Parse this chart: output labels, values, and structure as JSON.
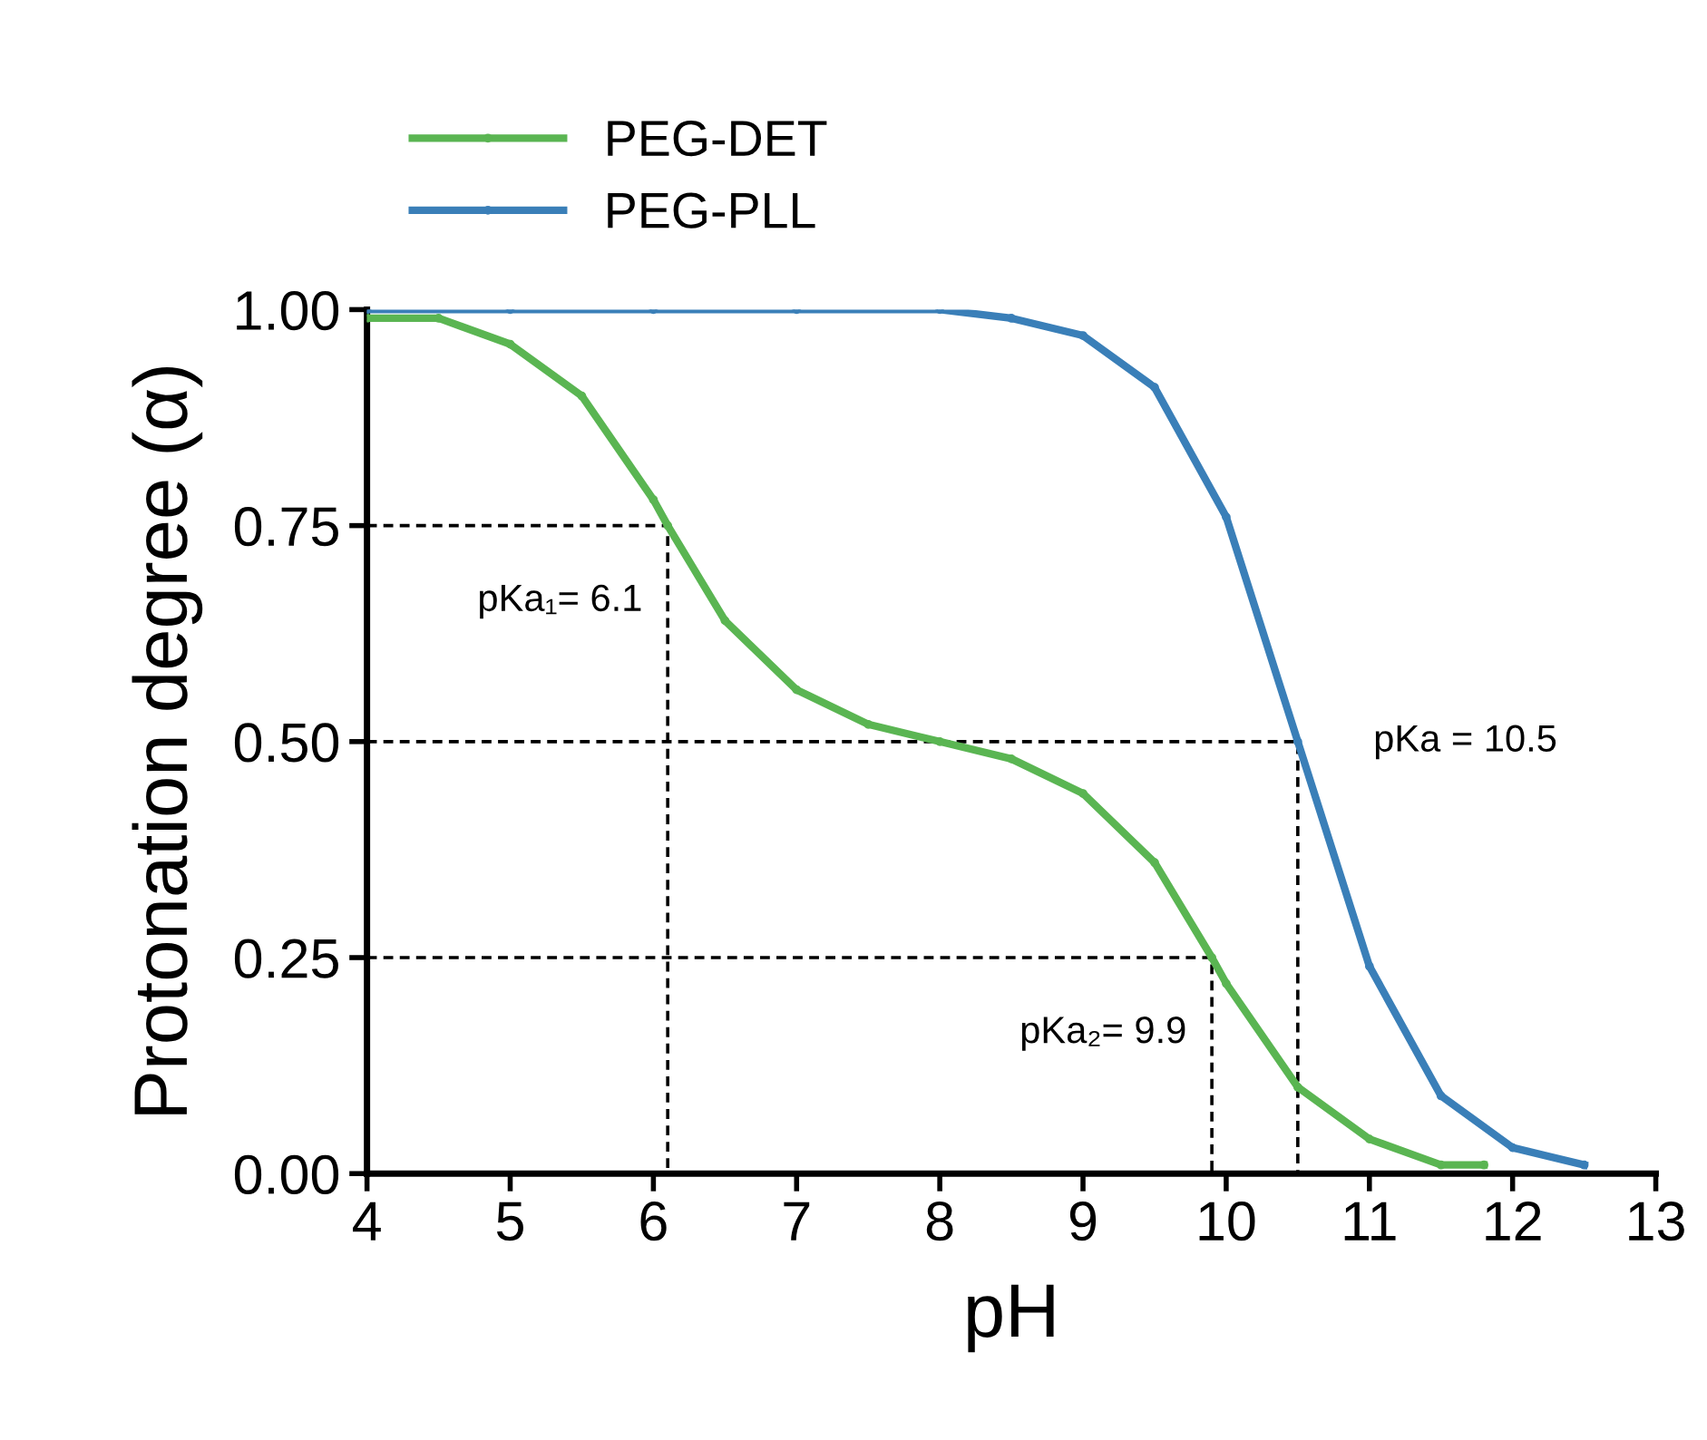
{
  "chart_data": {
    "type": "line",
    "xlabel": "pH",
    "ylabel": "Protonation degree (α)",
    "xlim": [
      4,
      13
    ],
    "xticks": [
      4,
      5,
      6,
      7,
      8,
      9,
      10,
      11,
      12,
      13
    ],
    "ylim": [
      0,
      1
    ],
    "yticks": [
      {
        "value": 0,
        "label": "0.00"
      },
      {
        "value": 0.25,
        "label": "0.25"
      },
      {
        "value": 0.5,
        "label": "0.50"
      },
      {
        "value": 0.75,
        "label": "0.75"
      },
      {
        "value": 1,
        "label": "1.00"
      }
    ],
    "grid": false,
    "legend": "top left",
    "marker": "circle",
    "line_style": "solid",
    "series": [
      {
        "name": "PEG-DET",
        "color": "#5ab552",
        "x": [
          4,
          4.5,
          5,
          5.5,
          6,
          6.1,
          6.5,
          7,
          7.5,
          8,
          8.5,
          9,
          9.5,
          9.9,
          10,
          10.5,
          11,
          11.5,
          11.8
        ],
        "values": [
          0.99,
          0.99,
          0.96,
          0.9,
          0.78,
          0.75,
          0.64,
          0.56,
          0.52,
          0.5,
          0.48,
          0.44,
          0.36,
          0.25,
          0.22,
          0.1,
          0.04,
          0.01,
          0.01
        ]
      },
      {
        "name": "PEG-PLL",
        "color": "#3a7fb8",
        "x": [
          4,
          5,
          6,
          7,
          8,
          8.5,
          9,
          9.5,
          10,
          10.5,
          11,
          11.5,
          12,
          12.5
        ],
        "values": [
          1,
          1,
          1,
          1,
          1,
          0.99,
          0.97,
          0.91,
          0.76,
          0.5,
          0.24,
          0.09,
          0.03,
          0.01
        ]
      },
      {
        "color": "#000000",
        "marker": "none",
        "line_style": "dashed",
        "x": [
          4,
          6.1,
          6.1
        ],
        "values": [
          0.75,
          0.75,
          0
        ]
      },
      {
        "color": "#000000",
        "marker": "none",
        "line_style": "dashed",
        "x": [
          4,
          10.5,
          10.5
        ],
        "values": [
          0.5,
          0.5,
          0
        ]
      },
      {
        "color": "#000000",
        "marker": "none",
        "line_style": "dashed",
        "x": [
          4,
          9.9,
          9.9
        ],
        "values": [
          0.25,
          0.25,
          0
        ]
      }
    ],
    "annotations": [
      {
        "text": "pKa₁= 6.1",
        "x": 6.1,
        "y": 0.75
      },
      {
        "text": "pKa = 10.5",
        "x": 10.5,
        "y": 0.5
      },
      {
        "text": "pKa₂= 9.9",
        "x": 9.9,
        "y": 0.25
      }
    ]
  }
}
